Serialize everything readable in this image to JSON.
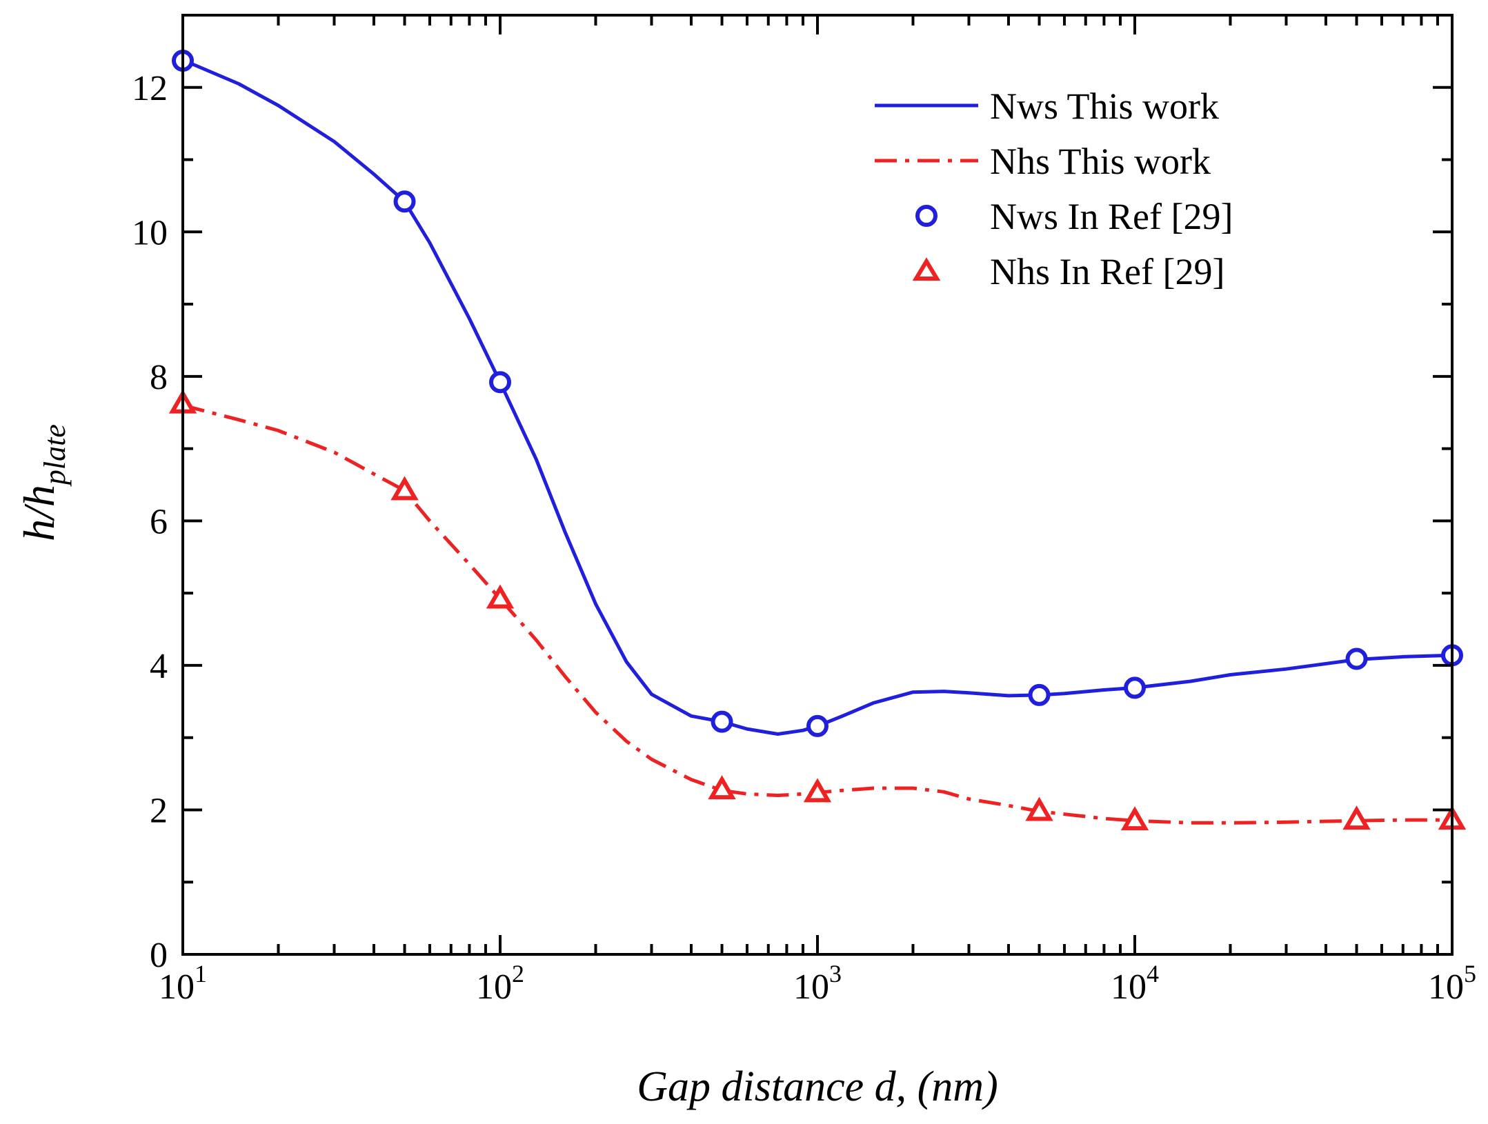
{
  "chart_data": {
    "type": "line",
    "xscale": "log",
    "xlim": [
      10,
      100000
    ],
    "ylim": [
      0,
      13
    ],
    "xlabel": "Gap distance d, (nm)",
    "ylabel_main": "h/h",
    "ylabel_sub": "plate",
    "x_ticks": [
      10,
      100,
      1000,
      10000,
      100000
    ],
    "x_tick_base": "10",
    "x_tick_exponents": [
      "1",
      "2",
      "3",
      "4",
      "5"
    ],
    "y_ticks": [
      0,
      2,
      4,
      6,
      8,
      10,
      12
    ],
    "y_tick_labels": [
      "0",
      "2",
      "4",
      "6",
      "8",
      "10",
      "12"
    ],
    "grid": false,
    "legend_position": "top-right",
    "series": [
      {
        "name": "Nws This work",
        "kind": "line",
        "style": "solid",
        "color": "#1f1fdd",
        "x": [
          10,
          15,
          20,
          30,
          40,
          50,
          60,
          80,
          100,
          130,
          160,
          200,
          250,
          300,
          400,
          500,
          600,
          750,
          900,
          1000,
          1200,
          1500,
          2000,
          2500,
          3000,
          4000,
          5000,
          6000,
          8000,
          10000,
          15000,
          20000,
          30000,
          50000,
          70000,
          100000
        ],
        "y": [
          12.38,
          12.05,
          11.75,
          11.25,
          10.8,
          10.42,
          9.85,
          8.8,
          7.92,
          6.85,
          5.85,
          4.85,
          4.05,
          3.6,
          3.3,
          3.22,
          3.12,
          3.05,
          3.1,
          3.16,
          3.3,
          3.48,
          3.63,
          3.64,
          3.62,
          3.58,
          3.59,
          3.61,
          3.66,
          3.69,
          3.78,
          3.87,
          3.95,
          4.08,
          4.12,
          4.14
        ]
      },
      {
        "name": "Nhs This work",
        "kind": "line",
        "style": "dashdot",
        "color": "#ee2222",
        "x": [
          10,
          15,
          20,
          30,
          40,
          50,
          60,
          80,
          100,
          130,
          160,
          200,
          250,
          300,
          400,
          500,
          600,
          750,
          900,
          1000,
          1200,
          1500,
          2000,
          2500,
          3000,
          4000,
          5000,
          6000,
          8000,
          10000,
          15000,
          20000,
          30000,
          50000,
          70000,
          100000
        ],
        "y": [
          7.6,
          7.4,
          7.25,
          6.95,
          6.65,
          6.42,
          6.0,
          5.4,
          4.92,
          4.35,
          3.85,
          3.35,
          2.95,
          2.7,
          2.42,
          2.27,
          2.22,
          2.2,
          2.22,
          2.24,
          2.27,
          2.3,
          2.3,
          2.25,
          2.15,
          2.06,
          1.98,
          1.94,
          1.88,
          1.85,
          1.82,
          1.82,
          1.83,
          1.85,
          1.86,
          1.86
        ]
      },
      {
        "name": "Nws In Ref [29]",
        "kind": "marker",
        "marker": "circle",
        "color": "#1f1fdd",
        "x": [
          10,
          50,
          100,
          500,
          1000,
          5000,
          10000,
          50000,
          100000
        ],
        "y": [
          12.37,
          10.42,
          7.92,
          3.22,
          3.16,
          3.59,
          3.69,
          4.09,
          4.14
        ]
      },
      {
        "name": "Nhs In Ref [29]",
        "kind": "marker",
        "marker": "triangle",
        "color": "#ee2222",
        "x": [
          10,
          50,
          100,
          500,
          1000,
          5000,
          10000,
          50000,
          100000
        ],
        "y": [
          7.62,
          6.42,
          4.92,
          2.28,
          2.24,
          1.98,
          1.85,
          1.86,
          1.86
        ]
      }
    ]
  }
}
